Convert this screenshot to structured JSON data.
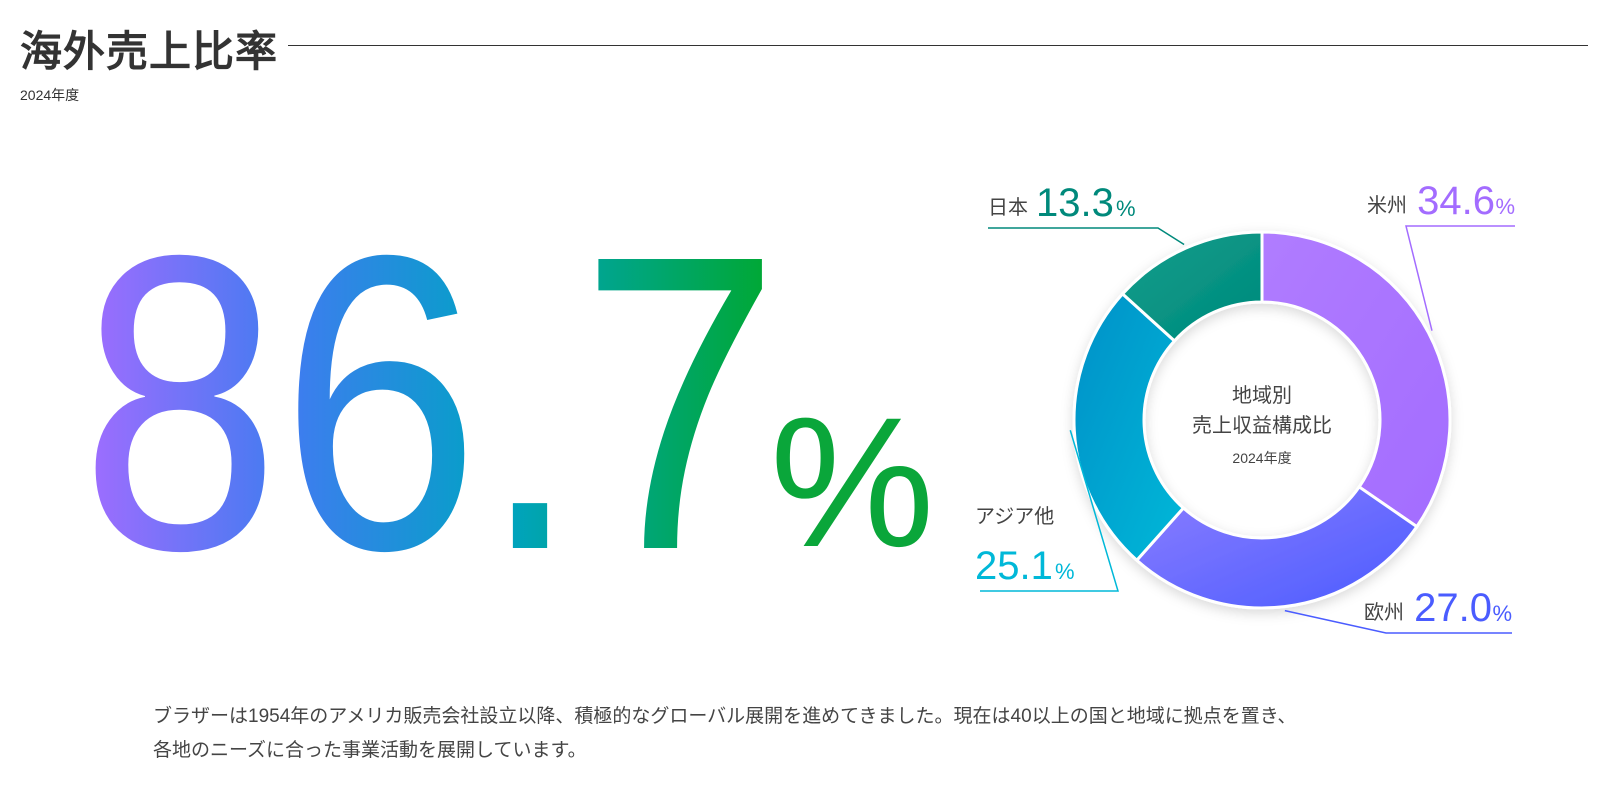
{
  "header": {
    "title": "海外売上比率",
    "subtitle": "2024年度"
  },
  "hero": {
    "value": "86.7",
    "unit": "%"
  },
  "chart_data": {
    "type": "pie",
    "variant": "donut",
    "title": "地域別",
    "title_line2": "売上収益構成比",
    "center_year": "2024年度",
    "unit": "%",
    "slices": [
      {
        "label": "米州",
        "value": 34.6,
        "value_text": "34.6",
        "color": "#a36cff",
        "color2": "#b07cff"
      },
      {
        "label": "欧州",
        "value": 27.0,
        "value_text": "27.0",
        "color": "#4a5cff",
        "color2": "#8b7dff"
      },
      {
        "label": "アジア他",
        "value": 25.1,
        "value_text": "25.1",
        "color": "#00b8d8",
        "color2": "#0090c8"
      },
      {
        "label": "日本",
        "value": 13.3,
        "value_text": "13.3",
        "color": "#00897b",
        "color2": "#0f9e8c"
      }
    ]
  },
  "description": {
    "line1": "ブラザーは1954年のアメリカ販売会社設立以降、積極的なグローバル展開を進めてきました。現在は40以上の国と地域に拠点を置き、",
    "line2": "各地のニーズに合った事業活動を展開しています。"
  },
  "colors": {
    "gradient_start": "#a36cff",
    "gradient_mid1": "#3f7cf0",
    "gradient_mid2": "#00a3c4",
    "gradient_end": "#00a82d"
  }
}
